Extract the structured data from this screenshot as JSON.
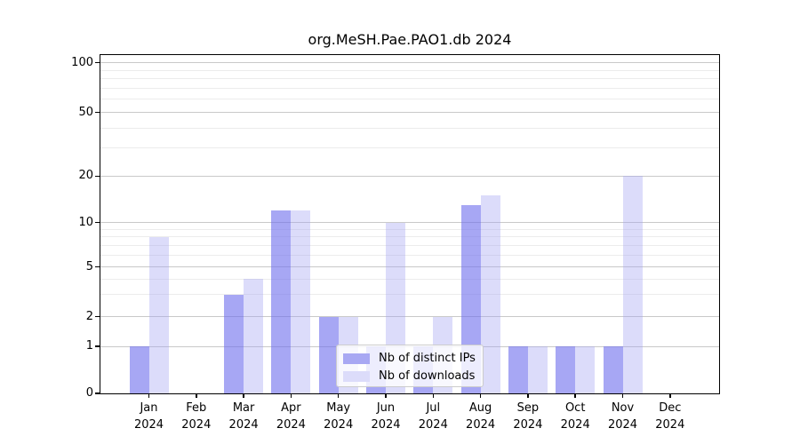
{
  "chart_data": {
    "type": "bar",
    "title": "org.MeSH.Pae.PAO1.db 2024",
    "categories": [
      "Jan 2024",
      "Feb 2024",
      "Mar 2024",
      "Apr 2024",
      "May 2024",
      "Jun 2024",
      "Jul 2024",
      "Aug 2024",
      "Sep 2024",
      "Oct 2024",
      "Nov 2024",
      "Dec 2024"
    ],
    "series": [
      {
        "name": "Nb of distinct IPs",
        "color": "#a8a8f3",
        "fill_rgba": "rgba(113,113,238,0.62)",
        "values": [
          1,
          0,
          3,
          12,
          2,
          1,
          1,
          13,
          1,
          1,
          1,
          0
        ]
      },
      {
        "name": "Nb of downloads",
        "color": "#dcdcfa",
        "fill_rgba": "rgba(164,164,243,0.38)",
        "values": [
          8,
          0,
          4,
          12,
          2,
          10,
          2,
          15,
          1,
          1,
          20,
          0
        ]
      }
    ],
    "yticks": [
      0,
      1,
      2,
      5,
      10,
      20,
      50,
      100
    ],
    "minor_gridline_values": [
      3,
      4,
      6,
      7,
      8,
      9,
      30,
      40,
      60,
      70,
      80,
      90
    ],
    "xlabel": "",
    "ylabel": "",
    "ylim": [
      0,
      112
    ],
    "yscale": "log-like",
    "grid": "horizontal",
    "legend_position": "lower-center"
  }
}
